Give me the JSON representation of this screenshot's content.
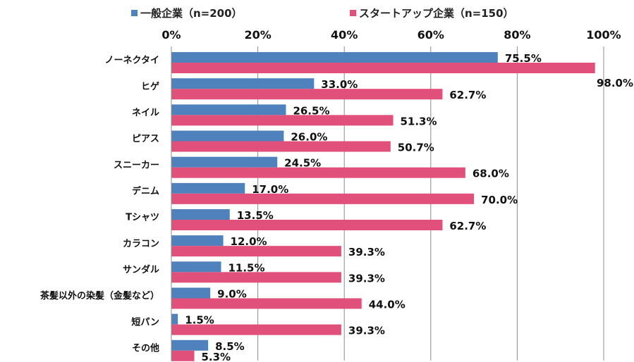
{
  "chart_data": {
    "type": "bar",
    "orientation": "horizontal",
    "categories": [
      "ノーネクタイ",
      "ヒゲ",
      "ネイル",
      "ピアス",
      "スニーカー",
      "デニム",
      "Tシャツ",
      "カラコン",
      "サンダル",
      "茶髪以外の染髪（金髪など）",
      "短パン",
      "その他"
    ],
    "series": [
      {
        "name": "一般企業（n=200）",
        "color": "#4f81bd",
        "values": [
          75.5,
          33.0,
          26.5,
          26.0,
          24.5,
          17.0,
          13.5,
          12.0,
          11.5,
          9.0,
          1.5,
          8.5
        ]
      },
      {
        "name": "スタートアップ企業（n=150）",
        "color": "#e0507a",
        "values": [
          98.0,
          62.7,
          51.3,
          50.7,
          68.0,
          70.0,
          62.7,
          39.3,
          39.3,
          44.0,
          39.3,
          5.3
        ]
      }
    ],
    "xlim": [
      0,
      100
    ],
    "xticks": [
      "0%",
      "20%",
      "40%",
      "60%",
      "80%",
      "100%"
    ],
    "xaxis_position": "top",
    "grid": true,
    "legend_position": "top",
    "value_suffix": "%"
  }
}
